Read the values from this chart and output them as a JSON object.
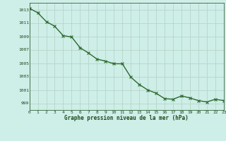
{
  "x": [
    0,
    1,
    2,
    3,
    4,
    5,
    6,
    7,
    8,
    9,
    10,
    11,
    12,
    13,
    14,
    15,
    16,
    17,
    18,
    19,
    20,
    21,
    22,
    23
  ],
  "y": [
    1013.2,
    1012.5,
    1011.2,
    1010.5,
    1009.1,
    1008.9,
    1007.3,
    1006.5,
    1005.6,
    1005.3,
    1004.9,
    1004.9,
    1002.9,
    1001.8,
    1001.0,
    1000.5,
    999.7,
    999.6,
    1000.1,
    999.8,
    999.4,
    999.2,
    999.6,
    999.4
  ],
  "line_color": "#2d6a2d",
  "marker_color": "#2d6a2d",
  "bg_color": "#ceeee8",
  "grid_color": "#b8d4c8",
  "xlabel": "Graphe pression niveau de la mer (hPa)",
  "xlabel_color": "#1a4a1a",
  "tick_color": "#1a4a1a",
  "ylim": [
    998.0,
    1014.0
  ],
  "xlim": [
    0,
    23
  ],
  "yticks": [
    999,
    1001,
    1003,
    1005,
    1007,
    1009,
    1011,
    1013
  ],
  "xticks": [
    0,
    1,
    2,
    3,
    4,
    5,
    6,
    7,
    8,
    9,
    10,
    11,
    12,
    13,
    14,
    15,
    16,
    17,
    18,
    19,
    20,
    21,
    22,
    23
  ],
  "marker_size": 3.0,
  "line_width": 1.0
}
